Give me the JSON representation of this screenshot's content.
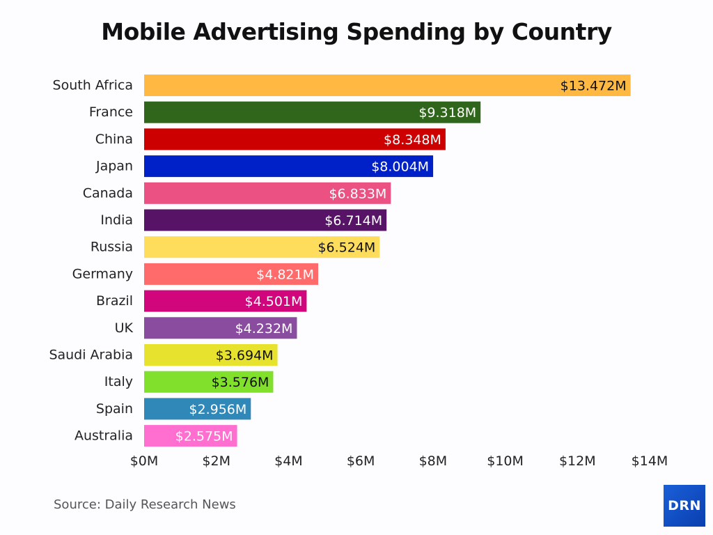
{
  "chart_data": {
    "type": "bar",
    "orientation": "horizontal",
    "title": "Mobile Advertising Spending by Country",
    "categories": [
      "South Africa",
      "France",
      "China",
      "Japan",
      "Canada",
      "India",
      "Russia",
      "Germany",
      "Brazil",
      "UK",
      "Saudi Arabia",
      "Italy",
      "Spain",
      "Australia"
    ],
    "values": [
      13.472,
      9.318,
      8.348,
      8.004,
      6.833,
      6.714,
      6.524,
      4.821,
      4.501,
      4.232,
      3.694,
      3.576,
      2.956,
      2.575
    ],
    "data_labels": [
      "$13.472M",
      "$9.318M",
      "$8.348M",
      "$8.004M",
      "$6.833M",
      "$6.714M",
      "$6.524M",
      "$4.821M",
      "$4.501M",
      "$4.232M",
      "$3.694M",
      "$3.576M",
      "$2.956M",
      "$2.575M"
    ],
    "colors": [
      "#ffb942",
      "#30651c",
      "#cc0000",
      "#0020c8",
      "#ec5183",
      "#571466",
      "#ffdd5c",
      "#ff6a6a",
      "#d1067d",
      "#894c9f",
      "#e6e22e",
      "#80e02c",
      "#2f88b8",
      "#ff6fd0"
    ],
    "label_colors": [
      "#111111",
      "#ffffff",
      "#ffffff",
      "#ffffff",
      "#ffffff",
      "#ffffff",
      "#111111",
      "#ffffff",
      "#ffffff",
      "#ffffff",
      "#111111",
      "#111111",
      "#ffffff",
      "#ffffff"
    ],
    "xticks": [
      0,
      2,
      4,
      6,
      8,
      10,
      12,
      14
    ],
    "xtick_labels": [
      "$0M",
      "$2M",
      "$4M",
      "$6M",
      "$8M",
      "$10M",
      "$12M",
      "$14M"
    ],
    "xlim": [
      0,
      14
    ],
    "xlabel": "",
    "ylabel": "",
    "grid": false,
    "legend": "none"
  },
  "footer": {
    "source": "Source: Daily Research News",
    "logo": "DRN"
  }
}
